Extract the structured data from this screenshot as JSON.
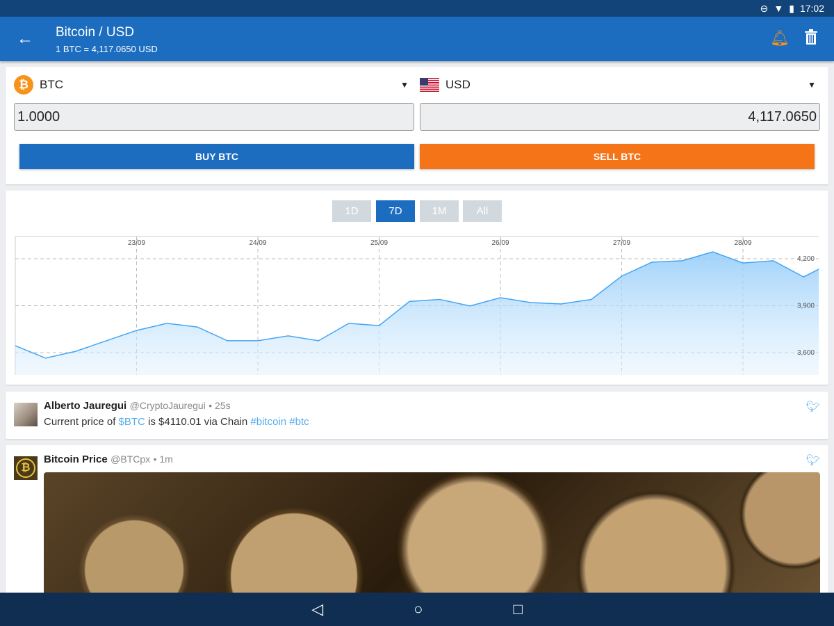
{
  "status_bar": {
    "time": "17:02"
  },
  "app_bar": {
    "title": "Bitcoin / USD",
    "subtitle": "1 BTC = 4,117.0650 USD"
  },
  "converter": {
    "from_currency": "BTC",
    "to_currency": "USD",
    "from_value": "1.0000",
    "to_value": "4,117.0650",
    "buy_label": "BUY BTC",
    "sell_label": "SELL BTC",
    "colors": {
      "buy": "#1c6dc0",
      "sell": "#f57417",
      "bitcoin": "#f7931a"
    }
  },
  "chart": {
    "ranges": [
      "1D",
      "7D",
      "1M",
      "All"
    ],
    "active_range": "7D"
  },
  "chart_data": {
    "type": "area",
    "x_tick_labels": [
      "23/09",
      "24/09",
      "25/09",
      "26/09",
      "27/09",
      "28/09"
    ],
    "y_tick_labels": [
      "4,200",
      "3,900",
      "3,600"
    ],
    "y_ticks": [
      4200,
      3900,
      3600
    ],
    "ylim": [
      3530,
      4280
    ],
    "grid": true,
    "color": "#42a5f5",
    "x": [
      "22/09 00:00",
      "22/09 06:00",
      "22/09 12:00",
      "22/09 18:00",
      "23/09 00:00",
      "23/09 06:00",
      "23/09 12:00",
      "23/09 18:00",
      "24/09 00:00",
      "24/09 06:00",
      "24/09 12:00",
      "24/09 18:00",
      "25/09 00:00",
      "25/09 06:00",
      "25/09 12:00",
      "25/09 18:00",
      "26/09 00:00",
      "26/09 06:00",
      "26/09 12:00",
      "26/09 18:00",
      "27/09 00:00",
      "27/09 06:00",
      "27/09 12:00",
      "27/09 18:00",
      "28/09 00:00",
      "28/09 06:00",
      "28/09 12:00",
      "28/09 15:00"
    ],
    "values": [
      3644,
      3565,
      3609,
      3676,
      3742,
      3787,
      3764,
      3676,
      3676,
      3707,
      3676,
      3787,
      3773,
      3927,
      3940,
      3898,
      3951,
      3920,
      3911,
      3940,
      4089,
      4178,
      4187,
      4244,
      4173,
      4187,
      4084,
      4133
    ]
  },
  "tweets": [
    {
      "name": "Alberto Jauregui",
      "handle": "@CryptoJauregui",
      "time": "• 25s",
      "text_parts": [
        "Current price of ",
        "$BTC",
        " is $4110.01 via Chain ",
        "#bitcoin",
        " ",
        "#btc"
      ]
    },
    {
      "name": "Bitcoin Price",
      "handle": "@BTCpx",
      "time": "• 1m"
    }
  ]
}
